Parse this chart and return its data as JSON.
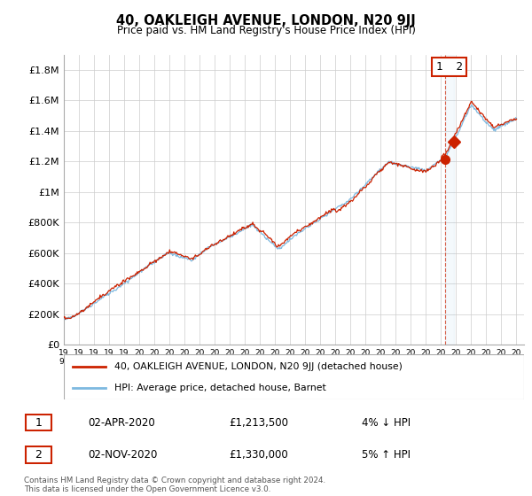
{
  "title": "40, OAKLEIGH AVENUE, LONDON, N20 9JJ",
  "subtitle": "Price paid vs. HM Land Registry's House Price Index (HPI)",
  "ylabel_ticks": [
    "£0",
    "£200K",
    "£400K",
    "£600K",
    "£800K",
    "£1M",
    "£1.2M",
    "£1.4M",
    "£1.6M",
    "£1.8M"
  ],
  "ytick_values": [
    0,
    200000,
    400000,
    600000,
    800000,
    1000000,
    1200000,
    1400000,
    1600000,
    1800000
  ],
  "ylim": [
    0,
    1900000
  ],
  "xlim_start": 1995.0,
  "xlim_end": 2025.5,
  "hpi_color": "#7db9e0",
  "price_color": "#cc2200",
  "legend_label_red": "40, OAKLEIGH AVENUE, LONDON, N20 9JJ (detached house)",
  "legend_label_blue": "HPI: Average price, detached house, Barnet",
  "transaction1_num": "1",
  "transaction1_date": "02-APR-2020",
  "transaction1_price": "£1,213,500",
  "transaction1_hpi": "4% ↓ HPI",
  "transaction2_num": "2",
  "transaction2_date": "02-NOV-2020",
  "transaction2_price": "£1,330,000",
  "transaction2_hpi": "5% ↑ HPI",
  "footer": "Contains HM Land Registry data © Crown copyright and database right 2024.\nThis data is licensed under the Open Government Licence v3.0.",
  "vline_x": 2020.75,
  "t1_x": 2020.25,
  "t1_y": 1213500,
  "t2_x": 2020.83,
  "t2_y": 1330000,
  "dashed_vline_color": "#cc2200",
  "grid_color": "#cccccc",
  "background_color": "#ffffff"
}
